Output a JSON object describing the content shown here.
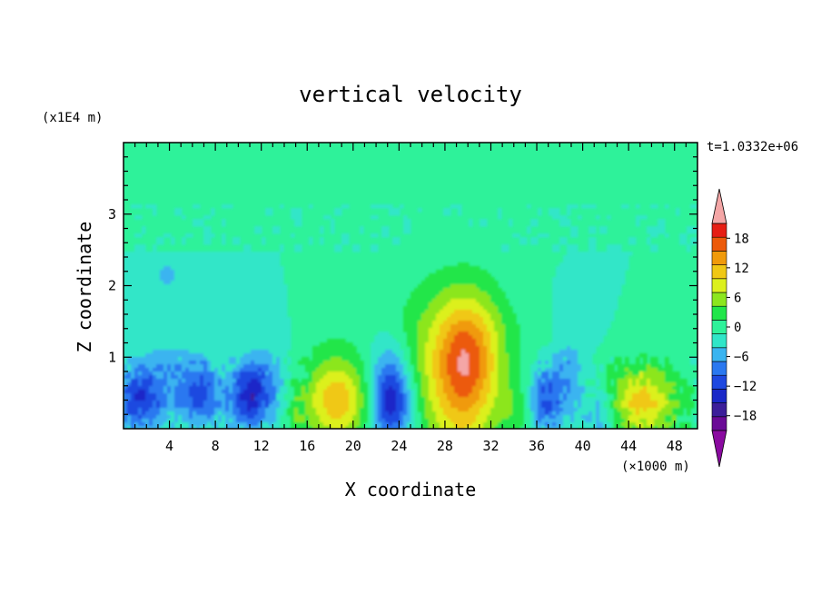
{
  "chart_data": {
    "type": "heatmap",
    "title": "vertical velocity",
    "xlabel": "X coordinate",
    "ylabel": "Z coordinate",
    "x_unit": "(×1000 m)",
    "y_unit": "(x1E4 m)",
    "time_label": "t=1.0332e+06",
    "xlim": [
      0,
      50
    ],
    "ylim": [
      0,
      4
    ],
    "x_ticks": [
      "4",
      "8",
      "12",
      "16",
      "20",
      "24",
      "28",
      "32",
      "36",
      "40",
      "44",
      "48"
    ],
    "x_tick_values": [
      4,
      8,
      12,
      16,
      20,
      24,
      28,
      32,
      36,
      40,
      44,
      48
    ],
    "y_ticks": [
      "1",
      "2",
      "3"
    ],
    "y_tick_values": [
      1,
      2,
      3
    ],
    "colorbar": {
      "labels": [
        "18",
        "12",
        "6",
        "0",
        "−6",
        "−12",
        "−18"
      ],
      "label_values": [
        18,
        12,
        6,
        0,
        -6,
        -12,
        -18
      ],
      "levels": [
        -21,
        -18,
        -15,
        -12,
        -9,
        -6,
        -3,
        0,
        3,
        6,
        9,
        12,
        15,
        18,
        21
      ],
      "colors": [
        "#6a0a96",
        "#3c1e9a",
        "#1a28c8",
        "#1e48e0",
        "#2a78f0",
        "#3ab4f0",
        "#30e6c8",
        "#2ef29a",
        "#22e64a",
        "#8ce61e",
        "#dcf01e",
        "#f0c814",
        "#f09a0a",
        "#ec5a0a",
        "#e61e14"
      ],
      "over_color": "#f4a6a6",
      "under_color": "#8a0aa0"
    },
    "features": [
      {
        "x": 18.6,
        "z": 0.38,
        "peak": 14,
        "sx": 2.0,
        "sz": 0.42
      },
      {
        "x": 29.5,
        "z": 0.55,
        "peak": 13,
        "sx": 2.3,
        "sz": 0.85
      },
      {
        "x": 30.0,
        "z": 1.1,
        "peak": 9,
        "sx": 2.0,
        "sz": 0.55
      },
      {
        "x": 45.2,
        "z": 0.38,
        "peak": 13,
        "sx": 2.3,
        "sz": 0.38
      },
      {
        "x": 23.4,
        "z": 0.35,
        "peak": -13,
        "sx": 1.3,
        "sz": 0.38
      },
      {
        "x": 23.0,
        "z": 0.8,
        "peak": -5,
        "sx": 1.3,
        "sz": 0.45
      },
      {
        "x": 1.3,
        "z": 0.4,
        "peak": -10,
        "sx": 1.4,
        "sz": 0.3
      },
      {
        "x": 6.8,
        "z": 0.48,
        "peak": -9,
        "sx": 1.1,
        "sz": 0.3
      },
      {
        "x": 10.7,
        "z": 0.45,
        "peak": -11,
        "sx": 1.2,
        "sz": 0.3
      },
      {
        "x": 12.5,
        "z": 0.6,
        "peak": -6,
        "sx": 1.5,
        "sz": 0.4
      },
      {
        "x": 4.0,
        "z": 0.7,
        "peak": -5,
        "sx": 2.0,
        "sz": 0.4
      },
      {
        "x": 14.7,
        "z": 0.25,
        "peak": 4,
        "sx": 0.9,
        "sz": 0.5
      },
      {
        "x": 36.7,
        "z": 0.4,
        "peak": -9,
        "sx": 1.1,
        "sz": 0.32
      },
      {
        "x": 39.2,
        "z": 0.75,
        "peak": -5,
        "sx": 1.6,
        "sz": 0.4
      },
      {
        "x": 40.8,
        "z": 0.55,
        "peak": 5,
        "sx": 0.9,
        "sz": 0.35
      },
      {
        "x": 41.3,
        "z": 0.25,
        "peak": -8,
        "sx": 1.0,
        "sz": 0.3
      },
      {
        "x": 25.5,
        "z": 0.9,
        "peak": 2.5,
        "sx": 2.0,
        "sz": 0.9
      },
      {
        "x": 34.2,
        "z": 0.25,
        "peak": 4,
        "sx": 1.0,
        "sz": 0.3
      },
      {
        "x": 3.8,
        "z": 2.15,
        "peak": -4,
        "sx": 1.0,
        "sz": 0.15
      }
    ]
  }
}
